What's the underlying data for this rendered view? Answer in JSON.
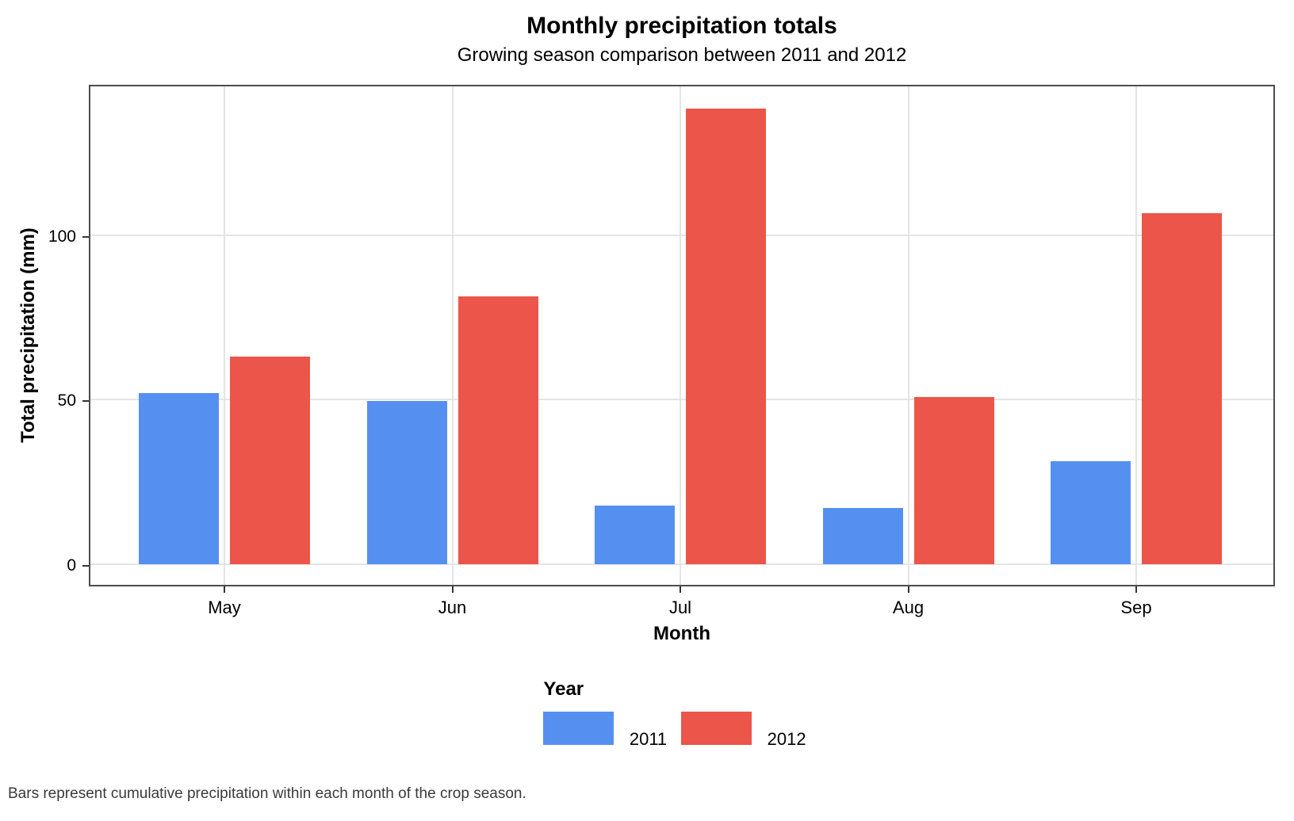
{
  "chart_data": {
    "type": "bar",
    "bar_layout": "grouped",
    "title": "Monthly precipitation totals",
    "subtitle": "Growing season comparison between 2011 and 2012",
    "caption": "Bars represent cumulative precipitation within each month of the crop season.",
    "xlabel": "Month",
    "ylabel": "Total precipitation (mm)",
    "categories": [
      "May",
      "Jun",
      "Jul",
      "Aug",
      "Sep"
    ],
    "series": [
      {
        "name": "2011",
        "color": "#5590F0",
        "values": [
          52.0,
          49.5,
          17.8,
          17.2,
          31.3
        ]
      },
      {
        "name": "2012",
        "color": "#EB554A",
        "values": [
          63.0,
          81.4,
          138.5,
          50.7,
          106.6
        ]
      }
    ],
    "legend_title": "Year",
    "legend_position": "bottom",
    "y_ticks": [
      0,
      50,
      100
    ],
    "ylim": [
      0,
      145
    ],
    "grid": "light gray major horizontal lines at y ticks and vertical lines at month centers"
  },
  "colors": {
    "series_2011": "#5590F0",
    "series_2012": "#EB554A",
    "gridline": "#E4E4E4",
    "panel_border": "#4D4D4D",
    "tick_mark": "#333333",
    "caption_text": "#3A3A3A",
    "background": "#FFFFFF"
  }
}
